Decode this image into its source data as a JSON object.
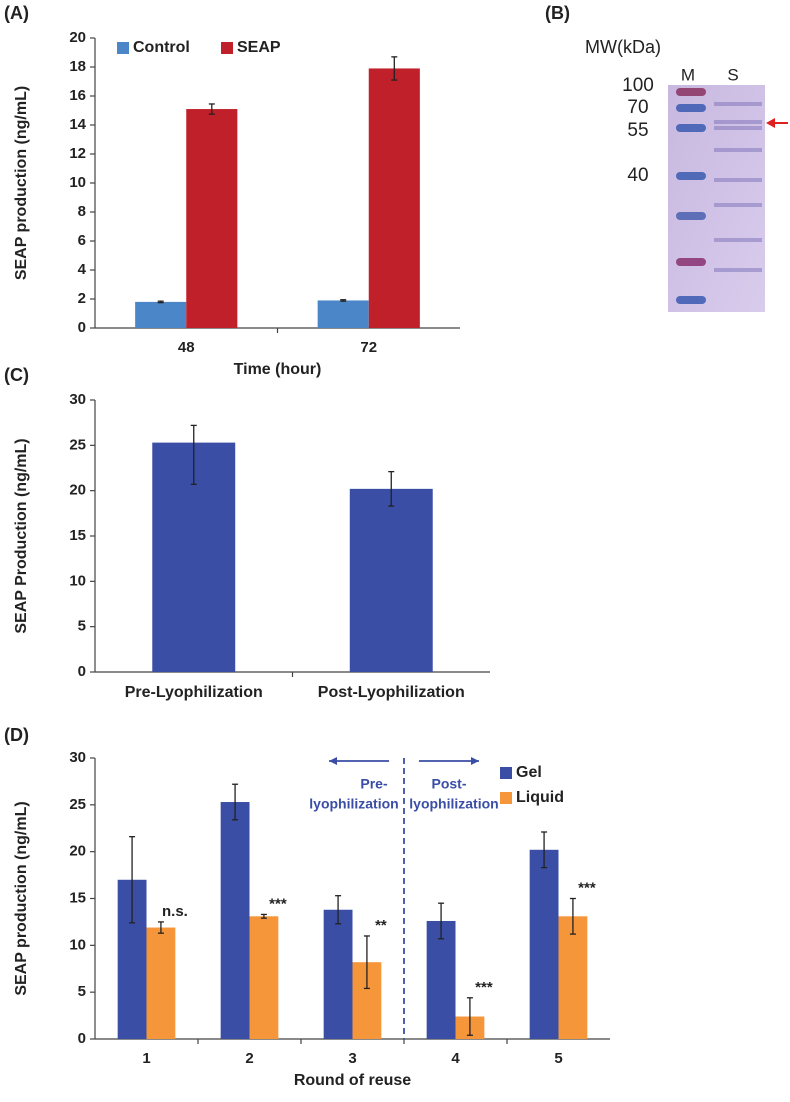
{
  "chart_data": [
    {
      "type": "bar",
      "panel_label": "(A)",
      "xlabel": "Time (hour)",
      "ylabel": "SEAP production (ng/mL)",
      "categories": [
        "48",
        "72"
      ],
      "series": [
        {
          "name": "Control",
          "color": "#4a86c8",
          "values": [
            1.8,
            1.9
          ],
          "errors": [
            0.05,
            0.05
          ]
        },
        {
          "name": "SEAP",
          "color": "#c0202a",
          "values": [
            15.1,
            17.9
          ],
          "errors": [
            0.35,
            0.8
          ]
        }
      ],
      "ylim": [
        0,
        20
      ],
      "yticks": [
        0,
        2,
        4,
        6,
        8,
        10,
        12,
        14,
        16,
        18,
        20
      ],
      "legend": "top-left"
    },
    {
      "type": "gel",
      "panel_label": "(B)",
      "axis_title": "MW(kDa)",
      "lanes": [
        "M",
        "S"
      ],
      "markers": [
        "100",
        "70",
        "55",
        "40"
      ]
    },
    {
      "type": "bar",
      "panel_label": "(C)",
      "ylabel": "SEAP Production (ng/mL)",
      "categories": [
        "Pre-Lyophilization",
        "Post-Lyophilization"
      ],
      "color": "#3a4ea5",
      "values": [
        25.3,
        20.2
      ],
      "errors_minus": [
        4.6,
        1.9
      ],
      "errors_plus": [
        1.9,
        1.9
      ],
      "ylim": [
        0,
        30
      ],
      "yticks": [
        0,
        5,
        10,
        15,
        20,
        25,
        30
      ]
    },
    {
      "type": "bar",
      "panel_label": "(D)",
      "xlabel": "Round of reuse",
      "ylabel": "SEAP production (ng/mL)",
      "categories": [
        "1",
        "2",
        "3",
        "4",
        "5"
      ],
      "series": [
        {
          "name": "Gel",
          "color": "#3a4ea5",
          "values": [
            17.0,
            25.3,
            13.8,
            12.6,
            20.2
          ],
          "errors": [
            4.6,
            1.9,
            1.5,
            1.9,
            1.9
          ]
        },
        {
          "name": "Liquid",
          "color": "#f5963a",
          "values": [
            11.9,
            13.1,
            8.2,
            2.4,
            13.1
          ],
          "errors": [
            0.6,
            0.2,
            2.8,
            2.0,
            1.9
          ]
        }
      ],
      "significance": [
        "n.s.",
        "***",
        "**",
        "***",
        "***"
      ],
      "region_labels": [
        [
          "Pre-",
          "lyophilization"
        ],
        [
          "Post-",
          "lyophilization"
        ]
      ],
      "ylim": [
        0,
        30
      ],
      "yticks": [
        0,
        5,
        10,
        15,
        20,
        25,
        30
      ],
      "legend": "top-right"
    }
  ]
}
